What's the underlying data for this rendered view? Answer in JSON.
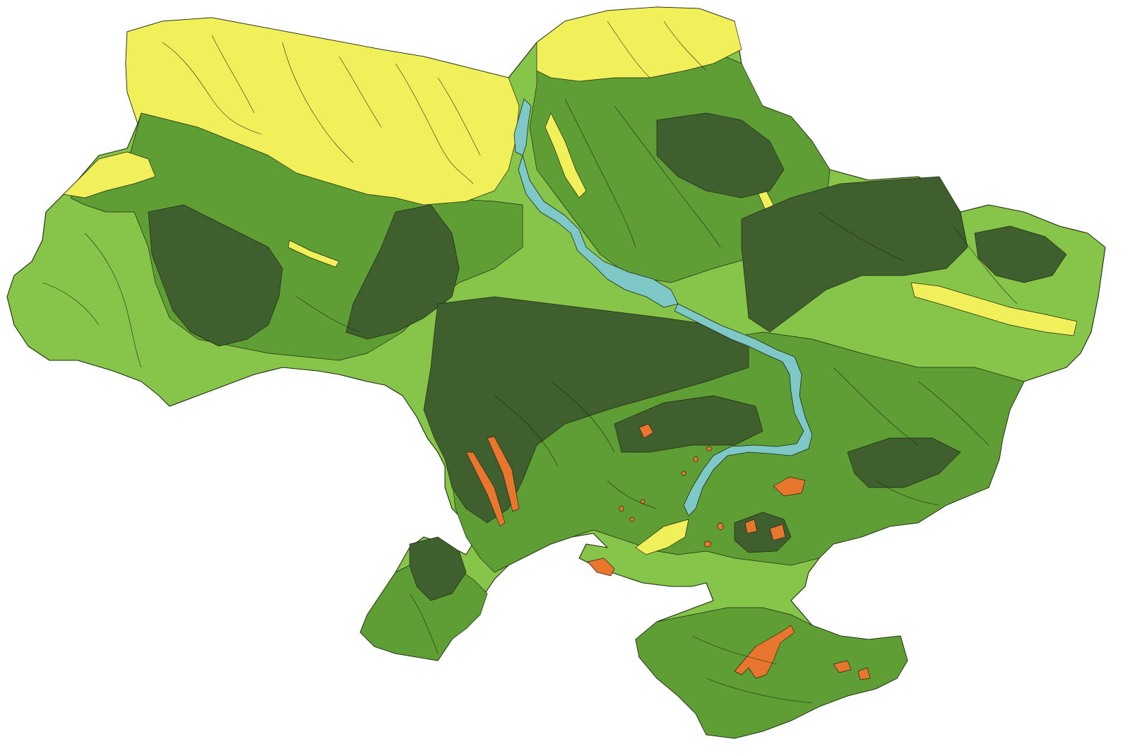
{
  "map": {
    "colors": {
      "background": "#ffffff",
      "yellow_zone": "#f2f05a",
      "light_green": "#86c44a",
      "mid_green": "#5e9e35",
      "dark_green": "#3f5f2e",
      "orange": "#e8762e",
      "river": "#7ec8c8",
      "border_line": "#1f2a12"
    }
  }
}
